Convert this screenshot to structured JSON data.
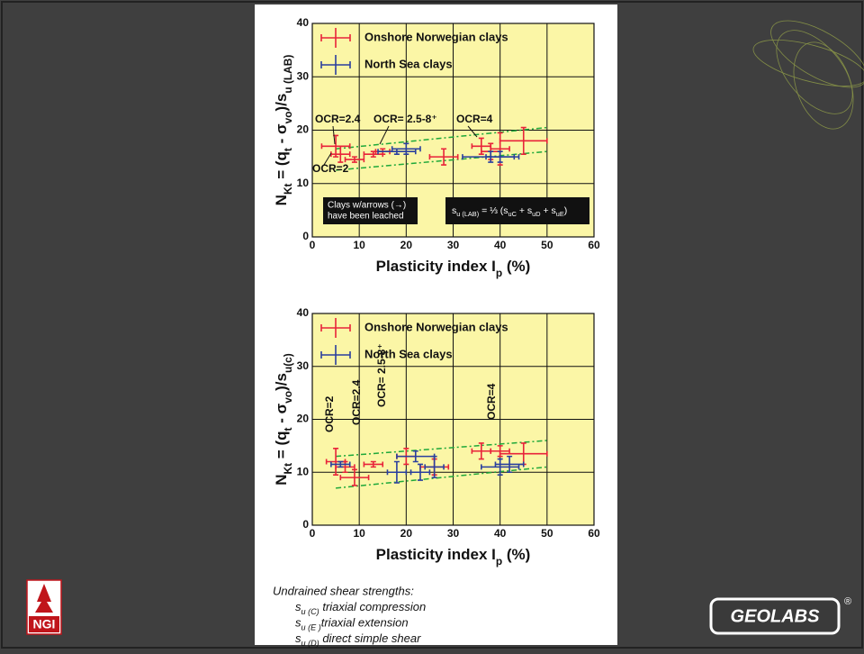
{
  "chart_data": [
    {
      "type": "scatter",
      "xlabel": [
        {
          "text": "Plasticity index I"
        },
        {
          "text": "p",
          "sub": true
        },
        {
          "text": " (%)"
        }
      ],
      "ylabel": [
        {
          "text": "N"
        },
        {
          "text": "Kt",
          "sub": true
        },
        {
          "text": " = (q"
        },
        {
          "text": "t",
          "sub": true
        },
        {
          "text": " - σ"
        },
        {
          "text": "vo",
          "sub": true
        },
        {
          "text": ")/s"
        },
        {
          "text": "u (LAB)",
          "sub": true
        }
      ],
      "xlim": [
        0,
        60
      ],
      "ylim": [
        0,
        40
      ],
      "xticks": [
        0,
        10,
        20,
        30,
        40,
        50,
        60
      ],
      "yticks": [
        0,
        10,
        20,
        30,
        40
      ],
      "grid": true,
      "legend": "upper left",
      "background": "#fbf6a6",
      "series": [
        {
          "name": "Onshore Norwegian clays",
          "color": "#e8233a",
          "x": [
            5,
            6,
            9,
            13,
            15,
            28,
            36,
            38,
            40,
            45
          ],
          "values": [
            17,
            15.5,
            14.5,
            15.5,
            16,
            15,
            17,
            16,
            16.5,
            18
          ],
          "xerr": [
            3,
            2,
            2,
            2,
            1.5,
            3,
            2,
            2,
            2,
            5
          ],
          "yerr": [
            2,
            1.5,
            0.5,
            0.5,
            0.5,
            1.5,
            1.5,
            1.5,
            3,
            2.5
          ]
        },
        {
          "name": "North Sea clays",
          "color": "#2a3f9e",
          "x": [
            18,
            20,
            38,
            40
          ],
          "values": [
            16,
            16.5,
            15,
            15
          ],
          "xerr": [
            4,
            3,
            6,
            3
          ],
          "yerr": [
            0.5,
            1,
            1,
            1
          ]
        }
      ],
      "bounds": [
        {
          "color": "#1fa83a",
          "x": [
            5,
            50
          ],
          "values": [
            16.5,
            20.5
          ]
        },
        {
          "color": "#1fa83a",
          "x": [
            5,
            50
          ],
          "values": [
            12.5,
            16
          ]
        }
      ],
      "annotations": [
        "OCR=2.4",
        "OCR= 2.5-8⁺",
        "OCR=4",
        "OCR=2"
      ],
      "note": [
        "Clays w/arrows (→)",
        "have been leached"
      ],
      "formula": [
        {
          "text": "s"
        },
        {
          "text": "u (LAB)",
          "sub": true
        },
        {
          "text": " = ⅓ (s"
        },
        {
          "text": "uC",
          "sub": true
        },
        {
          "text": " + s"
        },
        {
          "text": "uD",
          "sub": true
        },
        {
          "text": " + s"
        },
        {
          "text": "uE",
          "sub": true
        },
        {
          "text": ")"
        }
      ]
    },
    {
      "type": "scatter",
      "xlabel": [
        {
          "text": "Plasticity index I"
        },
        {
          "text": "p",
          "sub": true
        },
        {
          "text": " (%)"
        }
      ],
      "ylabel": [
        {
          "text": "N"
        },
        {
          "text": "Kt",
          "sub": true
        },
        {
          "text": " = (q"
        },
        {
          "text": "t",
          "sub": true
        },
        {
          "text": " - σ"
        },
        {
          "text": "vo",
          "sub": true
        },
        {
          "text": ")/s"
        },
        {
          "text": "u(c)",
          "sub": true
        }
      ],
      "xlim": [
        0,
        60
      ],
      "ylim": [
        0,
        40
      ],
      "xticks": [
        0,
        10,
        20,
        30,
        40,
        50,
        60
      ],
      "yticks": [
        0,
        10,
        20,
        30,
        40
      ],
      "grid": true,
      "legend": "upper left",
      "background": "#fbf6a6",
      "series": [
        {
          "name": "Onshore Norwegian clays",
          "color": "#e8233a",
          "x": [
            5,
            7,
            9,
            13,
            20,
            26,
            36,
            40,
            45
          ],
          "values": [
            12,
            11,
            9,
            11.5,
            13,
            11,
            14,
            14,
            13.5
          ],
          "xerr": [
            2,
            2,
            3,
            2,
            2,
            3,
            2,
            2,
            5
          ],
          "yerr": [
            2.5,
            1,
            1.5,
            0.5,
            1.5,
            1.5,
            1.5,
            1,
            2
          ]
        },
        {
          "name": "North Sea clays",
          "color": "#2a3f9e",
          "x": [
            6,
            18,
            22,
            23,
            26,
            40,
            42
          ],
          "values": [
            11.5,
            10,
            13,
            10,
            11,
            11,
            11.5
          ],
          "xerr": [
            2,
            2,
            4,
            2,
            2,
            4,
            3
          ],
          "yerr": [
            0.5,
            2,
            1,
            1.5,
            2,
            1.5,
            1.5
          ]
        }
      ],
      "bounds": [
        {
          "color": "#1fa83a",
          "x": [
            5,
            50
          ],
          "values": [
            13,
            16
          ]
        },
        {
          "color": "#1fa83a",
          "x": [
            5,
            50
          ],
          "values": [
            7,
            11
          ]
        }
      ],
      "annotations": [
        "OCR=2",
        "OCR=2.4",
        "OCR= 2.5-8⁺",
        "OCR=4"
      ]
    }
  ],
  "footer": {
    "title": "Undrained shear strengths:",
    "lines": [
      [
        {
          "text": "s"
        },
        {
          "text": "u (C)",
          "sub": true
        },
        {
          "text": " triaxial compression"
        }
      ],
      [
        {
          "text": "s"
        },
        {
          "text": "u (E )",
          "sub": true
        },
        {
          "text": "triaxial extension"
        }
      ],
      [
        {
          "text": "s"
        },
        {
          "text": "u (D)",
          "sub": true
        },
        {
          "text": " direct simple shear"
        }
      ]
    ]
  },
  "logos": {
    "left": "NGI",
    "right": "GEOLABS",
    "mark": "®"
  }
}
